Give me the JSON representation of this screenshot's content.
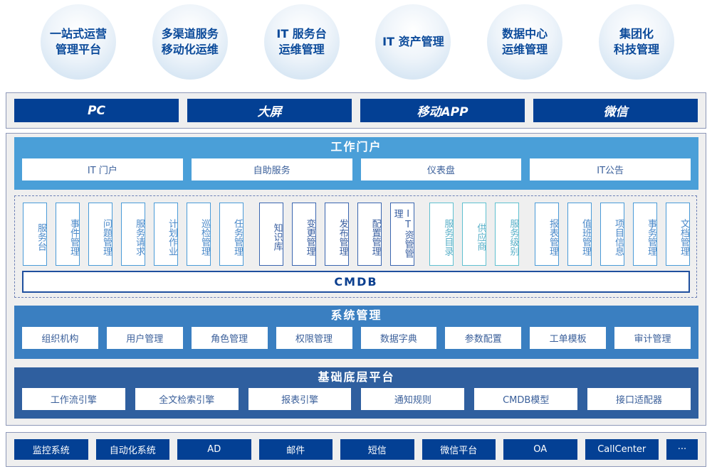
{
  "top_circles": [
    "一站式运营\n管理平台",
    "多渠道服务\n移动化运维",
    "IT 服务台\n运维管理",
    "IT 资产管理",
    "数据中心\n运维管理",
    "集团化\n科技管理"
  ],
  "channels": [
    "PC",
    "大屏",
    "移动APP",
    "微信"
  ],
  "portal": {
    "title": "工作门户",
    "items": [
      "IT 门户",
      "自助服务",
      "仪表盘",
      "IT公告"
    ]
  },
  "module_groups": [
    [
      "服务台",
      "事件管理",
      "问题管理",
      "服务请求",
      "计划作业",
      "巡检管理",
      "任务管理"
    ],
    [
      "知识库",
      "变更管理",
      "发布管理",
      "配置管理",
      "IT资管管理"
    ],
    [
      "服务目录",
      "供应商",
      "服务级别"
    ],
    [
      "报表管理",
      "值班管理",
      "项目信息",
      "事务管理",
      "文档管理"
    ]
  ],
  "cmdb": "CMDB",
  "system": {
    "title": "系统管理",
    "items": [
      "组织机构",
      "用户管理",
      "角色管理",
      "权限管理",
      "数据字典",
      "参数配置",
      "工单模板",
      "审计管理"
    ]
  },
  "base": {
    "title": "基础底层平台",
    "items": [
      "工作流引擎",
      "全文检索引擎",
      "报表引擎",
      "通知规则",
      "CMDB模型",
      "接口适配器"
    ]
  },
  "external": [
    "监控系统",
    "自动化系统",
    "AD",
    "邮件",
    "短信",
    "微信平台",
    "OA",
    "CallCenter",
    "···"
  ],
  "colors": {
    "dark_blue": "#034094",
    "portal": "#4a9fd8",
    "system": "#3a7fc1",
    "base": "#2f5f9f",
    "teal": "#5fc0d0"
  }
}
